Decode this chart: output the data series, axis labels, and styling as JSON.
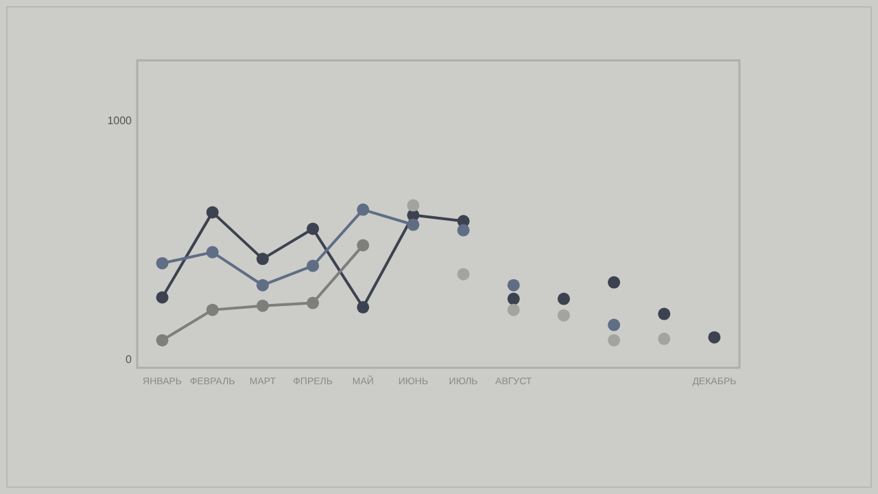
{
  "chart_data": {
    "type": "line",
    "categories": [
      "ЯНВАРЬ",
      "ФЕВРАЛЬ",
      "МАРТ",
      "ФПРЕЛЬ",
      "МАЙ",
      "ИЮНЬ",
      "ИЮЛЬ",
      "АВГУСТ",
      null,
      null,
      null,
      "ДЕКАБРЬ"
    ],
    "series": [
      {
        "color": "#3d4250",
        "values": [
          259,
          615,
          420,
          546,
          218,
          603,
          578,
          null,
          null,
          null,
          null,
          null
        ]
      },
      {
        "color": "#5f6e85",
        "values": [
          402,
          448,
          310,
          391,
          626,
          563,
          null,
          null,
          null,
          null,
          null,
          null
        ]
      },
      {
        "color": "#7e7f7c",
        "values": [
          80,
          207,
          224,
          236,
          477,
          null,
          null,
          null,
          null,
          null,
          null,
          null
        ]
      },
      {
        "type": "scatter",
        "color": "#3d4250",
        "values": [
          null,
          null,
          null,
          null,
          null,
          null,
          null,
          253,
          253,
          322,
          190,
          92
        ]
      },
      {
        "type": "scatter",
        "color": "#5f6e85",
        "values": [
          null,
          null,
          null,
          null,
          null,
          null,
          540,
          310,
          null,
          144,
          null,
          null
        ]
      },
      {
        "type": "scatter",
        "color": "#a3a4a0",
        "values": [
          null,
          null,
          null,
          null,
          null,
          644,
          356,
          207,
          184,
          80,
          86,
          null
        ]
      }
    ],
    "ylim": [
      -35,
      1250
    ],
    "yticks": [
      0,
      1000
    ],
    "marker": "circle"
  }
}
